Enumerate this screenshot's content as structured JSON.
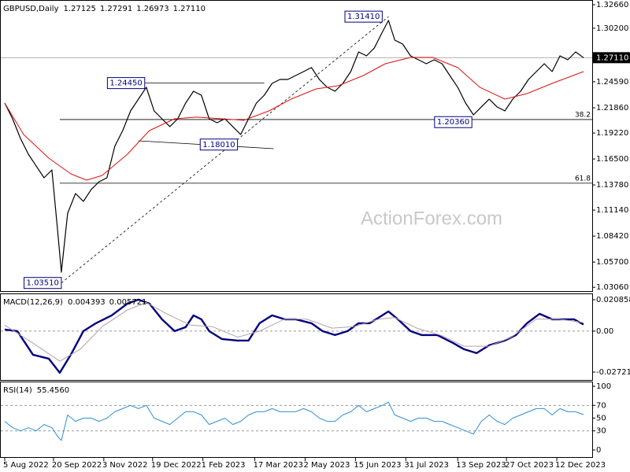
{
  "chart_data": [
    {
      "type": "line",
      "title": "GBPUSD,Daily",
      "header_values": [
        {
          "value": 1.27125,
          "label": "1.27125"
        },
        {
          "value": 1.27291,
          "label": "1.27291"
        },
        {
          "value": 1.26973,
          "label": "1.26973"
        },
        {
          "value": 1.2711,
          "label": "1.27110"
        }
      ],
      "xlim": [
        -2.5,
        373.5
      ],
      "ylim": [
        1.0258,
        1.3307
      ],
      "yticks": [
        {
          "value": 1.3266,
          "label": "1.32660"
        },
        {
          "value": 1.302,
          "label": "1.30200"
        },
        {
          "value": 1.2459,
          "label": "1.24590"
        },
        {
          "value": 1.2186,
          "label": "1.21860"
        },
        {
          "value": 1.1922,
          "label": "1.19220"
        },
        {
          "value": 1.165,
          "label": "1.16500"
        },
        {
          "value": 1.1378,
          "label": "1.13780"
        },
        {
          "value": 1.1114,
          "label": "1.11140"
        },
        {
          "value": 1.0842,
          "label": "1.08420"
        },
        {
          "value": 1.057,
          "label": "1.05700"
        },
        {
          "value": 1.0306,
          "label": "1.03060"
        }
      ],
      "last_price": {
        "value": 1.2711,
        "label": "1.27110"
      },
      "watermark": "ActionForex.com",
      "series": [
        {
          "color": "#000000",
          "width": 1.2,
          "x": [
            0,
            5,
            10,
            15,
            20,
            25,
            30,
            34,
            36,
            40,
            45,
            50,
            55,
            60,
            65,
            70,
            75,
            80,
            85,
            90,
            95,
            100,
            105,
            110,
            115,
            120,
            125,
            130,
            135,
            140,
            145,
            150,
            155,
            160,
            165,
            170,
            175,
            180,
            185,
            190,
            195,
            200,
            205,
            210,
            215,
            220,
            225,
            230,
            235,
            240,
            244,
            248,
            253,
            258,
            263,
            268,
            273,
            278,
            283,
            288,
            293,
            298,
            303,
            308,
            313,
            318,
            323,
            328,
            333,
            338,
            343,
            348,
            353,
            358,
            363,
            368
          ],
          "values": [
            1.2236,
            1.2071,
            1.1865,
            1.17,
            1.1577,
            1.1453,
            1.1535,
            1.0835,
            1.0464,
            1.1082,
            1.1288,
            1.1206,
            1.133,
            1.1412,
            1.1453,
            1.1783,
            1.1947,
            1.2153,
            1.2277,
            1.2401,
            1.2153,
            1.2071,
            1.1989,
            1.2071,
            1.2236,
            1.2359,
            1.2318,
            1.2071,
            1.203,
            1.2071,
            1.1989,
            1.1906,
            1.2071,
            1.2236,
            1.2318,
            1.2442,
            1.2483,
            1.2483,
            1.2524,
            1.2565,
            1.2607,
            1.2483,
            1.2401,
            1.2359,
            1.2442,
            1.2565,
            1.2771,
            1.273,
            1.2813,
            1.2977,
            1.3101,
            1.2895,
            1.2854,
            1.273,
            1.2689,
            1.2648,
            1.2689,
            1.2648,
            1.2524,
            1.2401,
            1.2236,
            1.2112,
            1.2195,
            1.2277,
            1.2195,
            1.2153,
            1.2277,
            1.2359,
            1.2483,
            1.2565,
            1.2648,
            1.2565,
            1.273,
            1.2689,
            1.2771,
            1.2711
          ]
        },
        {
          "color": "#e01010",
          "width": 1,
          "x": [
            0,
            12,
            28,
            42,
            52,
            62,
            78,
            92,
            108,
            122,
            138,
            152,
            168,
            182,
            198,
            212,
            228,
            242,
            258,
            272,
            288,
            302,
            318,
            332,
            348,
            368
          ],
          "values": [
            1.2236,
            1.1906,
            1.1659,
            1.1494,
            1.1428,
            1.1478,
            1.17,
            1.1947,
            1.2071,
            1.2088,
            1.2071,
            1.2055,
            1.2153,
            1.2277,
            1.2384,
            1.2417,
            1.2524,
            1.2648,
            1.2714,
            1.2714,
            1.2607,
            1.2401,
            1.2277,
            1.2335,
            1.2442,
            1.2565
          ]
        }
      ],
      "fib_levels": [
        {
          "label": "38.2",
          "price": 1.2063,
          "x": 35
        },
        {
          "label": "61.8",
          "price": 1.1396,
          "x": 35
        }
      ],
      "price_boxes": [
        {
          "label": "1.03510",
          "value": 1.0351,
          "x": 36
        },
        {
          "label": "1.24450",
          "value": 1.2445,
          "x": 89
        },
        {
          "label": "1.18010",
          "value": 1.1801,
          "x": 148
        },
        {
          "label": "1.31410",
          "value": 1.3141,
          "x": 240
        },
        {
          "label": "1.20360",
          "value": 1.2036,
          "x": 297
        }
      ],
      "trendlines": [
        {
          "x": [
            36,
            244
          ],
          "y": [
            1.0351,
            1.3141
          ],
          "dashed": true
        },
        {
          "x": [
            89,
            165
          ],
          "y": [
            1.2445,
            1.2445
          ],
          "dashed": false
        },
        {
          "x": [
            85,
            171
          ],
          "y": [
            1.184,
            1.1758
          ],
          "dashed": false
        }
      ]
    },
    {
      "type": "line",
      "title": "MACD(12,26,9)",
      "header_values": [
        {
          "value": 0.004393,
          "label": "0.004393"
        },
        {
          "value": 0.005721,
          "label": "0.005721"
        }
      ],
      "xlim": [
        -2.5,
        373.5
      ],
      "ylim": [
        -0.03296,
        0.02451
      ],
      "yticks": [
        0.020858,
        {
          "value": 0,
          "label": "0.00"
        },
        -0.027213
      ],
      "levels": [
        0
      ],
      "series": [
        {
          "color": "#000080",
          "width": 2.4,
          "x": [
            0,
            8,
            18,
            28,
            35,
            42,
            50,
            58,
            68,
            78,
            85,
            92,
            100,
            108,
            115,
            120,
            125,
            130,
            138,
            148,
            155,
            162,
            170,
            178,
            185,
            195,
            202,
            210,
            218,
            225,
            232,
            240,
            244,
            250,
            258,
            265,
            275,
            285,
            292,
            300,
            308,
            318,
            325,
            332,
            340,
            348,
            355,
            362,
            368
          ],
          "values": [
            0.00105,
            0,
            -0.01568,
            -0.01829,
            -0.02769,
            -0.01568,
            0,
            0.00523,
            0.01045,
            0.01829,
            0.0209,
            0.01829,
            0.00784,
            0,
            0.00261,
            0.01045,
            0.00784,
            0,
            -0.00523,
            -0.00627,
            -0.00627,
            0.00523,
            0.01045,
            0.00784,
            0.00784,
            0.00523,
            0,
            -0.00261,
            0,
            0.00523,
            0.00523,
            0.01045,
            0.01306,
            0.00784,
            0,
            -0.00261,
            -0.00261,
            -0.00784,
            -0.01202,
            -0.01463,
            -0.00941,
            -0.00627,
            -0.00261,
            0.00523,
            0.0115,
            0.00784,
            0.00784,
            0.00784,
            0.004393
          ]
        },
        {
          "color": "#b8a0a8",
          "width": 1,
          "x": [
            0,
            18,
            35,
            48,
            62,
            78,
            90,
            102,
            118,
            132,
            148,
            162,
            178,
            192,
            208,
            222,
            238,
            248,
            262,
            278,
            292,
            308,
            322,
            338,
            352,
            368
          ],
          "values": [
            0.004,
            -0.008,
            -0.02,
            -0.012,
            0.003,
            0.014,
            0.019,
            0.012,
            0.004,
            0.003,
            -0.004,
            0.0,
            0.008,
            0.008,
            0.002,
            0.003,
            0.008,
            0.009,
            0.002,
            -0.003,
            -0.01,
            -0.01,
            -0.004,
            0.008,
            0.008,
            0.005721
          ]
        }
      ]
    },
    {
      "type": "line",
      "title": "RSI(14)",
      "header_values": [
        {
          "value": 55.456,
          "label": "55.4560"
        }
      ],
      "xlim": [
        -2.5,
        373.5
      ],
      "ylim": [
        -12.3,
        106.2
      ],
      "yticks": [
        100,
        70,
        50,
        30,
        0
      ],
      "levels": [
        70,
        30
      ],
      "xticks": [
        {
          "value": 0,
          "label": "5 Aug 2022"
        },
        {
          "value": 31,
          "label": "20 Sep 2022"
        },
        {
          "value": 63,
          "label": "3 Nov 2022"
        },
        {
          "value": 94,
          "label": "19 Dec 2022"
        },
        {
          "value": 126,
          "label": "1 Feb 2023"
        },
        {
          "value": 159,
          "label": "17 Mar 2023"
        },
        {
          "value": 191,
          "label": "2 May 2023"
        },
        {
          "value": 223,
          "label": "15 Jun 2023"
        },
        {
          "value": 255,
          "label": "31 Jul 2023"
        },
        {
          "value": 288,
          "label": "13 Sep 2023"
        },
        {
          "value": 319,
          "label": "27 Oct 2023"
        },
        {
          "value": 351,
          "label": "12 Dec 2023"
        }
      ],
      "series": [
        {
          "color": "#2f8fd8",
          "width": 1,
          "x": [
            0,
            5,
            10,
            15,
            20,
            25,
            30,
            34,
            36,
            40,
            45,
            50,
            55,
            60,
            65,
            70,
            75,
            80,
            85,
            90,
            95,
            100,
            105,
            110,
            115,
            120,
            125,
            130,
            135,
            140,
            145,
            150,
            155,
            160,
            165,
            170,
            175,
            180,
            185,
            190,
            195,
            200,
            205,
            210,
            215,
            220,
            225,
            230,
            235,
            240,
            244,
            248,
            253,
            258,
            263,
            268,
            273,
            278,
            283,
            288,
            293,
            298,
            303,
            308,
            313,
            318,
            323,
            328,
            333,
            338,
            343,
            348,
            353,
            358,
            363,
            368
          ],
          "values": [
            45,
            35,
            30,
            35,
            30,
            40,
            35,
            20,
            15,
            55,
            45,
            50,
            50,
            45,
            50,
            60,
            65,
            70,
            65,
            70,
            50,
            45,
            40,
            50,
            60,
            60,
            55,
            40,
            45,
            50,
            40,
            45,
            55,
            60,
            60,
            65,
            60,
            60,
            60,
            65,
            60,
            50,
            45,
            45,
            55,
            60,
            70,
            60,
            65,
            70,
            75,
            55,
            50,
            45,
            50,
            50,
            45,
            45,
            40,
            35,
            30,
            25,
            45,
            55,
            45,
            40,
            50,
            55,
            60,
            65,
            65,
            55,
            65,
            60,
            60,
            55.456
          ]
        }
      ]
    }
  ]
}
